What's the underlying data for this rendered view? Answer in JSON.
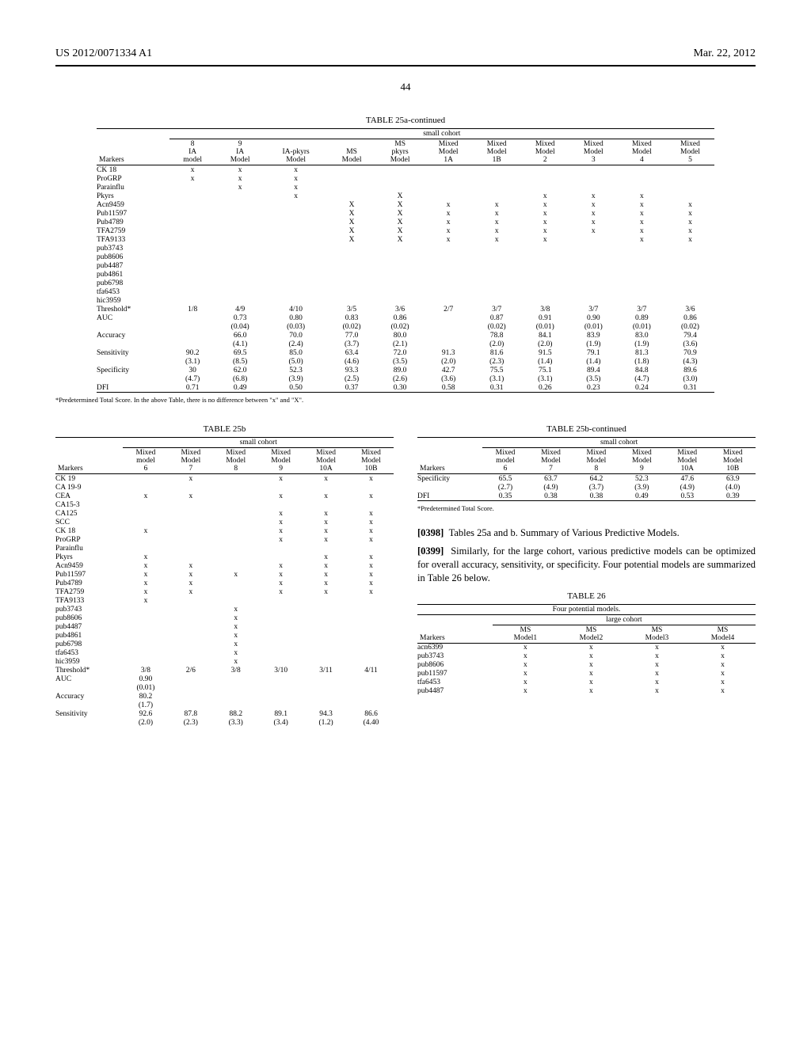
{
  "header": {
    "pub_no": "US 2012/0071334 A1",
    "date": "Mar. 22, 2012",
    "page": "44"
  },
  "table25a": {
    "title": "TABLE 25a-continued",
    "group_header": "small cohort",
    "columns": [
      "Markers",
      "8 IA model",
      "9 IA Model",
      "IA-pkyrs Model",
      "MS Model",
      "MS pkyrs Model",
      "Mixed Model 1A",
      "Mixed Model 1B",
      "Mixed Model 2",
      "Mixed Model 3",
      "Mixed Model 4",
      "Mixed Model 5"
    ],
    "markers": [
      [
        "CK 18",
        "x",
        "x",
        "x",
        "",
        "",
        "",
        "",
        "",
        "",
        "",
        ""
      ],
      [
        "ProGRP",
        "x",
        "x",
        "x",
        "",
        "",
        "",
        "",
        "",
        "",
        "",
        ""
      ],
      [
        "Parainflu",
        "",
        "x",
        "x",
        "",
        "",
        "",
        "",
        "",
        "",
        "",
        ""
      ],
      [
        "Pkyrs",
        "",
        "",
        "x",
        "",
        "X",
        "",
        "",
        "x",
        "x",
        "x",
        ""
      ],
      [
        "Acn9459",
        "",
        "",
        "",
        "X",
        "X",
        "x",
        "x",
        "x",
        "x",
        "x",
        "x"
      ],
      [
        "Pub11597",
        "",
        "",
        "",
        "X",
        "X",
        "x",
        "x",
        "x",
        "x",
        "x",
        "x"
      ],
      [
        "Pub4789",
        "",
        "",
        "",
        "X",
        "X",
        "x",
        "x",
        "x",
        "x",
        "x",
        "x"
      ],
      [
        "TFA2759",
        "",
        "",
        "",
        "X",
        "X",
        "x",
        "x",
        "x",
        "x",
        "x",
        "x"
      ],
      [
        "TFA9133",
        "",
        "",
        "",
        "X",
        "X",
        "x",
        "x",
        "x",
        "",
        "x",
        "x"
      ],
      [
        "pub3743",
        "",
        "",
        "",
        "",
        "",
        "",
        "",
        "",
        "",
        "",
        ""
      ],
      [
        "pub8606",
        "",
        "",
        "",
        "",
        "",
        "",
        "",
        "",
        "",
        "",
        ""
      ],
      [
        "pub4487",
        "",
        "",
        "",
        "",
        "",
        "",
        "",
        "",
        "",
        "",
        ""
      ],
      [
        "pub4861",
        "",
        "",
        "",
        "",
        "",
        "",
        "",
        "",
        "",
        "",
        ""
      ],
      [
        "pub6798",
        "",
        "",
        "",
        "",
        "",
        "",
        "",
        "",
        "",
        "",
        ""
      ],
      [
        "tfa6453",
        "",
        "",
        "",
        "",
        "",
        "",
        "",
        "",
        "",
        "",
        ""
      ],
      [
        "hic3959",
        "",
        "",
        "",
        "",
        "",
        "",
        "",
        "",
        "",
        "",
        ""
      ]
    ],
    "stats": [
      [
        "Threshold*",
        "1/8",
        "4/9",
        "4/10",
        "3/5",
        "3/6",
        "2/7",
        "3/7",
        "3/8",
        "3/7",
        "3/7",
        "3/6"
      ],
      [
        "AUC",
        "",
        "0.73",
        "0.80",
        "0.83",
        "0.86",
        "",
        "0.87",
        "0.91",
        "0.90",
        "0.89",
        "0.86"
      ],
      [
        "",
        "",
        "(0.04)",
        "(0.03)",
        "(0.02)",
        "(0.02)",
        "",
        "(0.02)",
        "(0.01)",
        "(0.01)",
        "(0.01)",
        "(0.02)"
      ],
      [
        "Accuracy",
        "",
        "66.0",
        "70.0",
        "77.0",
        "80.0",
        "",
        "78.8",
        "84.1",
        "83.9",
        "83.0",
        "79.4"
      ],
      [
        "",
        "",
        "(4.1)",
        "(2.4)",
        "(3.7)",
        "(2.1)",
        "",
        "(2.0)",
        "(2.0)",
        "(1.9)",
        "(1.9)",
        "(3.6)"
      ],
      [
        "Sensitivity",
        "90.2",
        "69.5",
        "85.0",
        "63.4",
        "72.0",
        "91.3",
        "81.6",
        "91.5",
        "79.1",
        "81.3",
        "70.9"
      ],
      [
        "",
        "(3.1)",
        "(8.5)",
        "(5.0)",
        "(4.6)",
        "(3.5)",
        "(2.0)",
        "(2.3)",
        "(1.4)",
        "(1.4)",
        "(1.8)",
        "(4.3)"
      ],
      [
        "Specificity",
        "30",
        "62.0",
        "52.3",
        "93.3",
        "89.0",
        "42.7",
        "75.5",
        "75.1",
        "89.4",
        "84.8",
        "89.6"
      ],
      [
        "",
        "(4.7)",
        "(6.8)",
        "(3.9)",
        "(2.5)",
        "(2.6)",
        "(3.6)",
        "(3.1)",
        "(3.1)",
        "(3.5)",
        "(4.7)",
        "(3.0)"
      ],
      [
        "DFI",
        "0.71",
        "0.49",
        "0.50",
        "0.37",
        "0.30",
        "0.58",
        "0.31",
        "0.26",
        "0.23",
        "0.24",
        "0.31"
      ]
    ],
    "footnote": "*Predetermined Total Score. In the above Table, there is no difference between \"x\" and \"X\"."
  },
  "table25b": {
    "title": "TABLE 25b",
    "group_header": "small cohort",
    "columns": [
      "Markers",
      "Mixed model 6",
      "Mixed Model 7",
      "Mixed Model 8",
      "Mixed Model 9",
      "Mixed Model 10A",
      "Mixed Model 10B"
    ],
    "markers": [
      [
        "CK 19",
        "",
        "x",
        "",
        "x",
        "x",
        "x"
      ],
      [
        "CA 19-9",
        "",
        "",
        "",
        "",
        "",
        ""
      ],
      [
        "CEA",
        "x",
        "x",
        "",
        "x",
        "x",
        "x"
      ],
      [
        "CA15-3",
        "",
        "",
        "",
        "",
        "",
        ""
      ],
      [
        "CA125",
        "",
        "",
        "",
        "x",
        "x",
        "x"
      ],
      [
        "SCC",
        "",
        "",
        "",
        "x",
        "x",
        "x"
      ],
      [
        "CK 18",
        "x",
        "",
        "",
        "x",
        "x",
        "x"
      ],
      [
        "ProGRP",
        "",
        "",
        "",
        "x",
        "x",
        "x"
      ],
      [
        "Parainflu",
        "",
        "",
        "",
        "",
        "",
        ""
      ],
      [
        "Pkyrs",
        "x",
        "",
        "",
        "",
        "x",
        "x"
      ],
      [
        "Acn9459",
        "x",
        "x",
        "",
        "x",
        "x",
        "x"
      ],
      [
        "Pub11597",
        "x",
        "x",
        "x",
        "x",
        "x",
        "x"
      ],
      [
        "Pub4789",
        "x",
        "x",
        "",
        "x",
        "x",
        "x"
      ],
      [
        "TFA2759",
        "x",
        "x",
        "",
        "x",
        "x",
        "x"
      ],
      [
        "TFA9133",
        "x",
        "",
        "",
        "",
        "",
        ""
      ],
      [
        "pub3743",
        "",
        "",
        "x",
        "",
        "",
        ""
      ],
      [
        "pub8606",
        "",
        "",
        "x",
        "",
        "",
        ""
      ],
      [
        "pub4487",
        "",
        "",
        "x",
        "",
        "",
        ""
      ],
      [
        "pub4861",
        "",
        "",
        "x",
        "",
        "",
        ""
      ],
      [
        "pub6798",
        "",
        "",
        "x",
        "",
        "",
        ""
      ],
      [
        "tfa6453",
        "",
        "",
        "x",
        "",
        "",
        ""
      ],
      [
        "hic3959",
        "",
        "",
        "x",
        "",
        "",
        ""
      ]
    ],
    "stats": [
      [
        "Threshold*",
        "3/8",
        "2/6",
        "3/8",
        "3/10",
        "3/11",
        "4/11"
      ],
      [
        "AUC",
        "0.90",
        "",
        "",
        "",
        "",
        ""
      ],
      [
        "",
        "(0.01)",
        "",
        "",
        "",
        "",
        ""
      ],
      [
        "Accuracy",
        "80.2",
        "",
        "",
        "",
        "",
        ""
      ],
      [
        "",
        "(1.7)",
        "",
        "",
        "",
        "",
        ""
      ],
      [
        "Sensitivity",
        "92.6",
        "87.8",
        "88.2",
        "89.1",
        "94.3",
        "86.6"
      ],
      [
        "",
        "(2.0)",
        "(2.3)",
        "(3.3)",
        "(3.4)",
        "(1.2)",
        "(4.40"
      ]
    ]
  },
  "table25b_cont": {
    "title": "TABLE 25b-continued",
    "group_header": "small cohort",
    "columns": [
      "Markers",
      "Mixed model 6",
      "Mixed Model 7",
      "Mixed Model 8",
      "Mixed Model 9",
      "Mixed Model 10A",
      "Mixed Model 10B"
    ],
    "stats": [
      [
        "Specificity",
        "65.5",
        "63.7",
        "64.2",
        "52.3",
        "47.6",
        "63.9"
      ],
      [
        "",
        "(2.7)",
        "(4.9)",
        "(3.7)",
        "(3.9)",
        "(4.9)",
        "(4.0)"
      ],
      [
        "DFI",
        "0.35",
        "0.38",
        "0.38",
        "0.49",
        "0.53",
        "0.39"
      ]
    ],
    "footnote": "*Predetermined Total Score."
  },
  "paragraphs": {
    "p398": "Tables 25a and b. Summary of Various Predictive Models.",
    "p398_num": "[0398]",
    "p399": "Similarly, for the large cohort, various predictive models can be optimized for overall accuracy, sensitivity, or specificity. Four potential models are summarized in Table 26 below.",
    "p399_num": "[0399]"
  },
  "table26": {
    "title": "TABLE 26",
    "subtitle": "Four potential models.",
    "group_header": "large cohort",
    "columns": [
      "Markers",
      "MS Model1",
      "MS Model2",
      "MS Model3",
      "MS Model4"
    ],
    "rows": [
      [
        "acn6399",
        "x",
        "x",
        "x",
        "x"
      ],
      [
        "pub3743",
        "x",
        "x",
        "x",
        "x"
      ],
      [
        "pub8606",
        "x",
        "x",
        "x",
        "x"
      ],
      [
        "pub11597",
        "x",
        "x",
        "x",
        "x"
      ],
      [
        "tfa6453",
        "x",
        "x",
        "x",
        "x"
      ],
      [
        "pub4487",
        "x",
        "x",
        "x",
        "x"
      ]
    ]
  }
}
